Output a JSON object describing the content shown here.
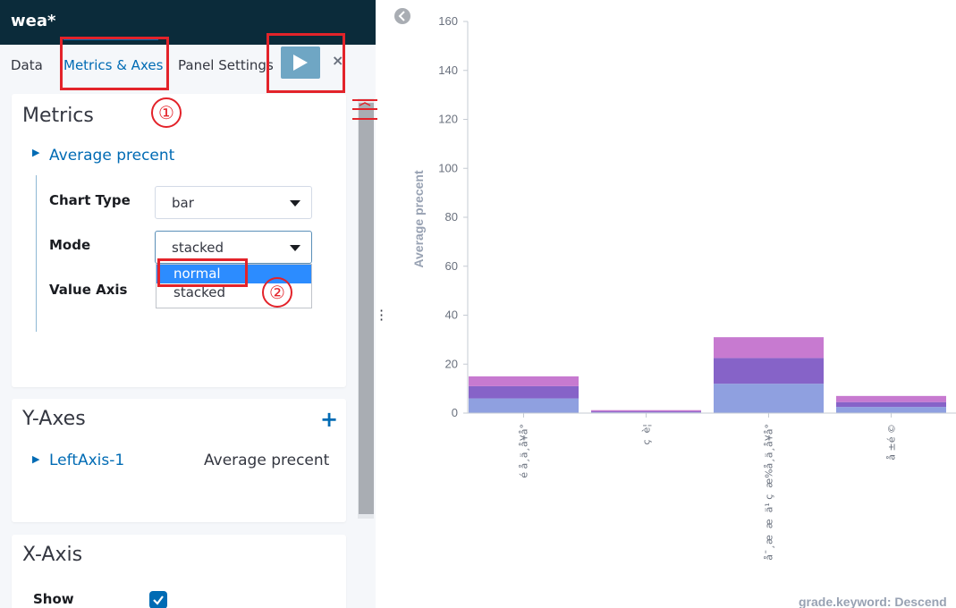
{
  "editor": {
    "title": "wea*",
    "tabs": [
      {
        "label": "Data"
      },
      {
        "label": "Metrics & Axes"
      },
      {
        "label": "Panel Settings"
      }
    ],
    "discard_label": "×"
  },
  "metrics": {
    "title": "Metrics",
    "metric_label": "Average precent",
    "chart_type_label": "Chart Type",
    "chart_type_value": "bar",
    "mode_label": "Mode",
    "mode_value": "stacked",
    "value_axis_label": "Value Axis",
    "mode_options": [
      "normal",
      "stacked"
    ]
  },
  "yaxes": {
    "title": "Y-Axes",
    "add_label": "+",
    "axis_name": "LeftAxis-1",
    "axis_value": "Average precent"
  },
  "xaxis": {
    "title": "X-Axis",
    "show_label": "Show"
  },
  "annotations": [
    "①",
    "②"
  ],
  "chart_data": {
    "type": "bar",
    "ylabel": "Average precent",
    "xlabel": "grade.keyword: Descend",
    "ylim": [
      0,
      160
    ],
    "yticks": [
      0,
      20,
      40,
      60,
      80,
      100,
      120,
      140,
      160
    ],
    "categories": [
      "é å¸ä¸­å¥å°",
      "ç  è¦",
      "å¯¸æ  æ  ä¹ ç  æ%å¸ä¸­å¥å°",
      "å ±é ©"
    ],
    "series": [
      {
        "values": [
          6,
          0.3,
          12,
          2.5
        ],
        "color": "#8fa0e0"
      },
      {
        "values": [
          5,
          0.4,
          10.5,
          2
        ],
        "color": "#8663c8"
      },
      {
        "values": [
          4,
          0.5,
          8.5,
          2.5
        ],
        "color": "#c77ad0"
      }
    ]
  }
}
